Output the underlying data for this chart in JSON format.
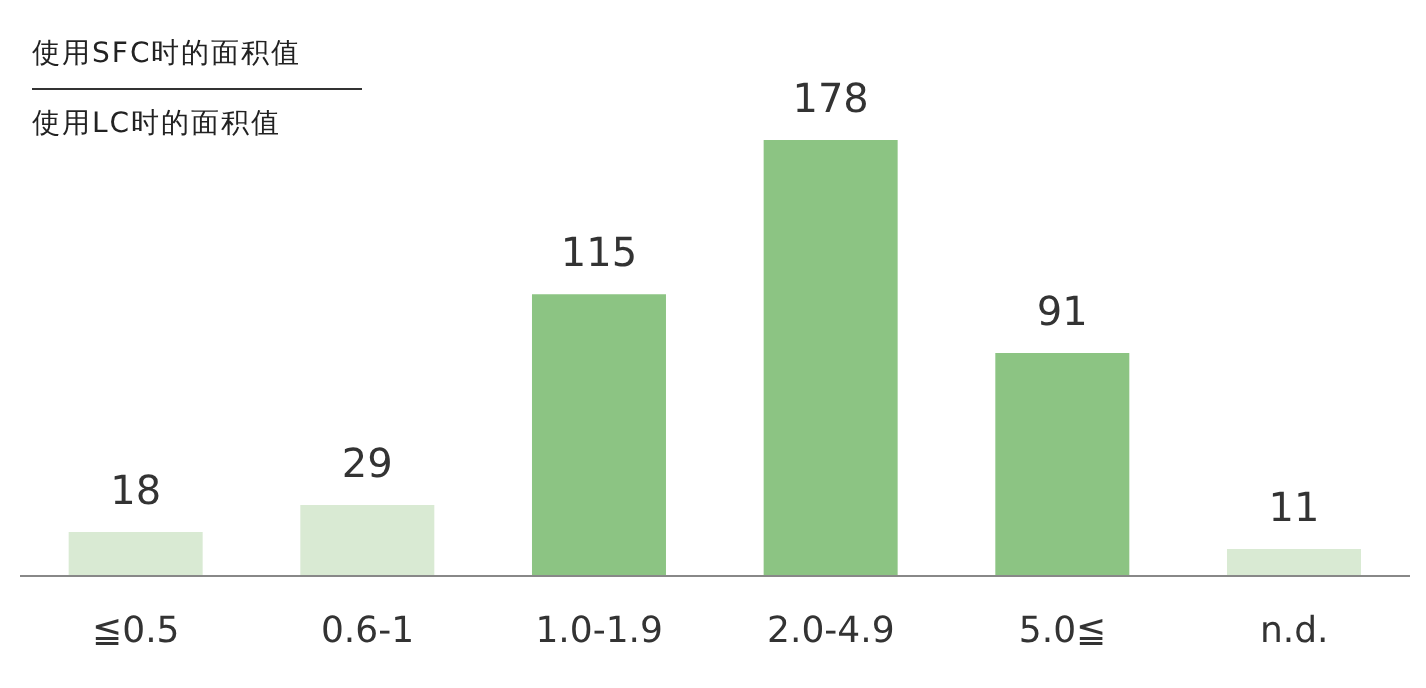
{
  "chart_data": {
    "type": "bar",
    "title": "使用SFC时的面积值",
    "subtitle": "使用LC时的面积值",
    "categories": [
      "≦0.5",
      "0.6-1",
      "1.0-1.9",
      "2.0-4.9",
      "5.0≦",
      "n.d."
    ],
    "values": [
      18,
      29,
      115,
      178,
      91,
      11
    ],
    "colors": [
      "#d9ead3",
      "#d9ead3",
      "#8cc483",
      "#8cc483",
      "#8cc483",
      "#d9ead3"
    ],
    "data_labels": true
  }
}
